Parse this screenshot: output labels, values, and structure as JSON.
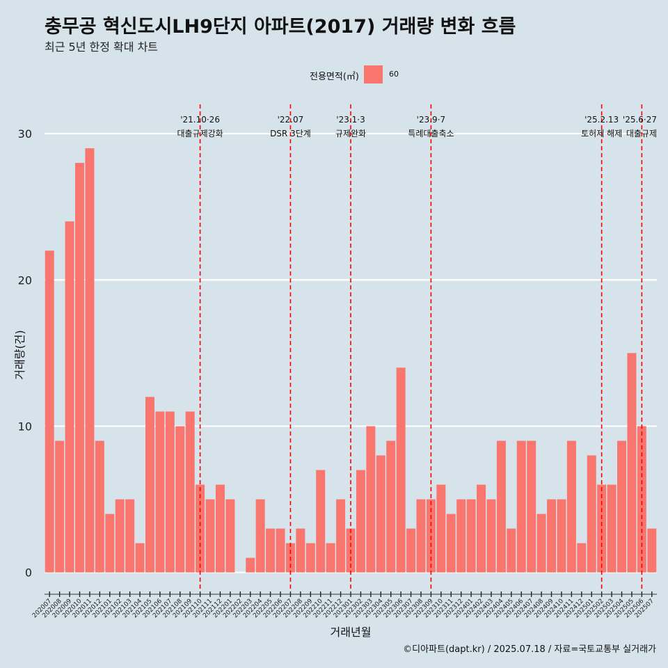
{
  "header": {
    "title": "충무공 혁신도시LH9단지 아파트(2017) 거래량 변화 흐름",
    "subtitle": "최근 5년 한정 확대 차트"
  },
  "legend": {
    "title": "전용면적(㎡)",
    "label": "60",
    "color": "#F8766D"
  },
  "caption": "©디아파트(dapt.kr) / 2025.07.18 / 자료=국토교통부 실거래가",
  "colors": {
    "background": "#d6e3ea",
    "bar": "#F8766D",
    "event_line": "#ff0000",
    "grid": "#ffffff"
  },
  "chart_data": {
    "type": "bar",
    "title": "충무공 혁신도시LH9단지 아파트(2017) 거래량 변화 흐름",
    "subtitle": "최근 5년 한정 확대 차트",
    "xlabel": "거래년월",
    "ylabel": "거래량(건)",
    "ylim": [
      -1.3,
      32
    ],
    "yticks": [
      0,
      10,
      20,
      30
    ],
    "grid": true,
    "legend_position": "top",
    "categories": [
      "202007",
      "202008",
      "202009",
      "202010",
      "202011",
      "202012",
      "202101",
      "202102",
      "202103",
      "202104",
      "202105",
      "202106",
      "202107",
      "202108",
      "202109",
      "202110",
      "202111",
      "202112",
      "202201",
      "202202",
      "202203",
      "202204",
      "202205",
      "202206",
      "202207",
      "202208",
      "202209",
      "202210",
      "202211",
      "202212",
      "202301",
      "202302",
      "202303",
      "202304",
      "202305",
      "202306",
      "202307",
      "202308",
      "202309",
      "202310",
      "202311",
      "202312",
      "202401",
      "202402",
      "202403",
      "202404",
      "202405",
      "202406",
      "202407",
      "202408",
      "202409",
      "202410",
      "202411",
      "202412",
      "202501",
      "202502",
      "202503",
      "202504",
      "202505",
      "202506",
      "202507"
    ],
    "series": [
      {
        "name": "60",
        "values": [
          22,
          9,
          24,
          28,
          29,
          9,
          4,
          5,
          5,
          2,
          12,
          11,
          11,
          10,
          11,
          6,
          5,
          6,
          5,
          0,
          1,
          5,
          3,
          3,
          2,
          3,
          2,
          7,
          2,
          5,
          3,
          7,
          10,
          8,
          9,
          14,
          3,
          5,
          5,
          6,
          4,
          5,
          5,
          6,
          5,
          9,
          3,
          9,
          9,
          4,
          5,
          5,
          9,
          2,
          8,
          6,
          6,
          9,
          15,
          10,
          3
        ]
      }
    ],
    "events": [
      {
        "category": "202110",
        "date": "'21.10·26",
        "label": "대출규제강화"
      },
      {
        "category": "202207",
        "date": "'22.07",
        "label": "DSR 3단계"
      },
      {
        "category": "202301",
        "date": "'23.1·3",
        "label": "규제완화"
      },
      {
        "category": "202309",
        "date": "'23.9·7",
        "label": "특례대출축소"
      },
      {
        "category": "202502",
        "date": "'25.2.13",
        "label": "토허제 해제"
      },
      {
        "category": "202506",
        "date": "'25.6·27",
        "label": "대출규제"
      }
    ]
  }
}
